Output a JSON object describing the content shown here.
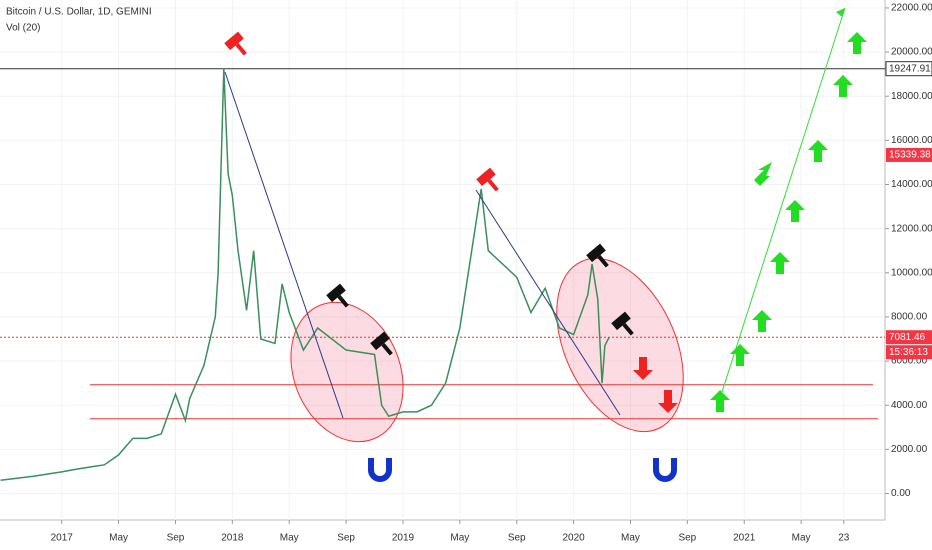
{
  "chart_data": {
    "type": "line",
    "title": "Bitcoin / U.S. Dollar, 1D, GEMINI",
    "subtitle": "Vol (20)",
    "color": "#3a8f5c",
    "x": [
      -4.3,
      -2,
      0,
      1,
      2,
      3,
      4,
      5,
      6,
      7,
      8,
      8.7,
      9,
      10,
      10.8,
      11,
      11.4,
      11.7,
      12,
      12.4,
      13,
      13.5,
      14,
      15,
      15.5,
      16,
      17,
      18,
      19,
      20,
      21,
      22,
      22.5,
      23,
      24,
      25,
      26,
      27,
      28,
      29.5,
      30,
      31,
      32,
      33,
      34,
      35,
      36,
      37,
      37.3,
      37.7,
      38,
      38.2,
      38.5
    ],
    "values": [
      600,
      780,
      980,
      1100,
      1200,
      1300,
      1750,
      2500,
      2500,
      2700,
      4500,
      3300,
      4300,
      5800,
      8000,
      10000,
      19247.91,
      14500,
      13500,
      11000,
      8300,
      11000,
      7000,
      6800,
      9500,
      8200,
      6500,
      7500,
      7000,
      6500,
      6400,
      6300,
      4000,
      3500,
      3700,
      3700,
      4000,
      5000,
      7500,
      13800,
      11000,
      10400,
      9800,
      8200,
      9300,
      7500,
      7200,
      9000,
      10400,
      8800,
      5000,
      6700,
      7081.46
    ],
    "xlim": [
      -4.34,
      57.9
    ],
    "xticks": [
      {
        "value": 0,
        "label": "2017"
      },
      {
        "value": 4,
        "label": "May"
      },
      {
        "value": 8,
        "label": "Sep"
      },
      {
        "value": 12,
        "label": "2018"
      },
      {
        "value": 16,
        "label": "May"
      },
      {
        "value": 20,
        "label": "Sep"
      },
      {
        "value": 24,
        "label": "2019"
      },
      {
        "value": 28,
        "label": "May"
      },
      {
        "value": 32,
        "label": "Sep"
      },
      {
        "value": 36,
        "label": "2020"
      },
      {
        "value": 40,
        "label": "May"
      },
      {
        "value": 44,
        "label": "Sep"
      },
      {
        "value": 48,
        "label": "2021"
      },
      {
        "value": 52,
        "label": "May"
      },
      {
        "value": 55,
        "label": "23"
      }
    ],
    "ylim": [
      -1200,
      22360
    ],
    "yticks": [
      {
        "value": 0,
        "label": "0.00"
      },
      {
        "value": 2000,
        "label": "2000.00"
      },
      {
        "value": 4000,
        "label": "4000.00"
      },
      {
        "value": 6000,
        "label": "6000.00"
      },
      {
        "value": 8000,
        "label": "8000.00"
      },
      {
        "value": 10000,
        "label": "10000.00"
      },
      {
        "value": 12000,
        "label": "12000.00"
      },
      {
        "value": 14000,
        "label": "14000.00"
      },
      {
        "value": 16000,
        "label": "16000.00"
      },
      {
        "value": 18000,
        "label": "18000.00"
      },
      {
        "value": 20000,
        "label": "20000.00"
      },
      {
        "value": 22000,
        "label": "22000.00"
      }
    ],
    "grid": true,
    "high_line": 19247.91,
    "alert_price": 15339.38,
    "last_price": 7081.46,
    "countdown": "15:36:13",
    "support_lines": [
      4930,
      3390
    ]
  }
}
